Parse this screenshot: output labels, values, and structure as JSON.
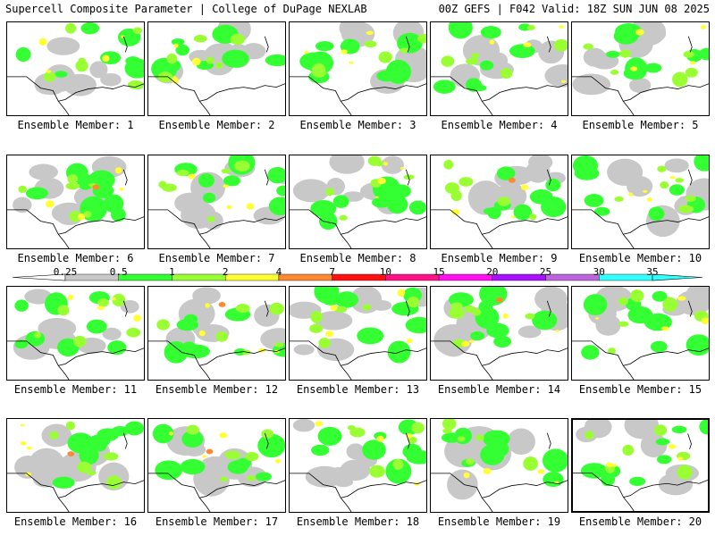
{
  "header": {
    "title": "Supercell Composite Parameter | College of DuPage NEXLAB",
    "run_info": "00Z GEFS | F042 Valid: 18Z SUN JUN 08 2025"
  },
  "members": [
    {
      "label": "Ensemble Member: 1"
    },
    {
      "label": "Ensemble Member: 2"
    },
    {
      "label": "Ensemble Member: 3"
    },
    {
      "label": "Ensemble Member: 4"
    },
    {
      "label": "Ensemble Member: 5"
    },
    {
      "label": "Ensemble Member: 6"
    },
    {
      "label": "Ensemble Member: 7"
    },
    {
      "label": "Ensemble Member: 8"
    },
    {
      "label": "Ensemble Member: 9"
    },
    {
      "label": "Ensemble Member: 10"
    },
    {
      "label": "Ensemble Member: 11"
    },
    {
      "label": "Ensemble Member: 12"
    },
    {
      "label": "Ensemble Member: 13"
    },
    {
      "label": "Ensemble Member: 14"
    },
    {
      "label": "Ensemble Member: 15"
    },
    {
      "label": "Ensemble Member: 16"
    },
    {
      "label": "Ensemble Member: 17"
    },
    {
      "label": "Ensemble Member: 18"
    },
    {
      "label": "Ensemble Member: 19"
    },
    {
      "label": "Ensemble Member: 20"
    }
  ],
  "legend": {
    "ticks": [
      "0.25",
      "0.5",
      "1",
      "2",
      "4",
      "7",
      "10",
      "15",
      "20",
      "25",
      "30",
      "35"
    ],
    "colors": [
      "#ffffff",
      "#c8c8c8",
      "#33ff33",
      "#99ff33",
      "#ffff33",
      "#ff8833",
      "#ff1111",
      "#ff1188",
      "#ff11ee",
      "#aa11ff",
      "#bb66dd",
      "#33ffff"
    ]
  }
}
